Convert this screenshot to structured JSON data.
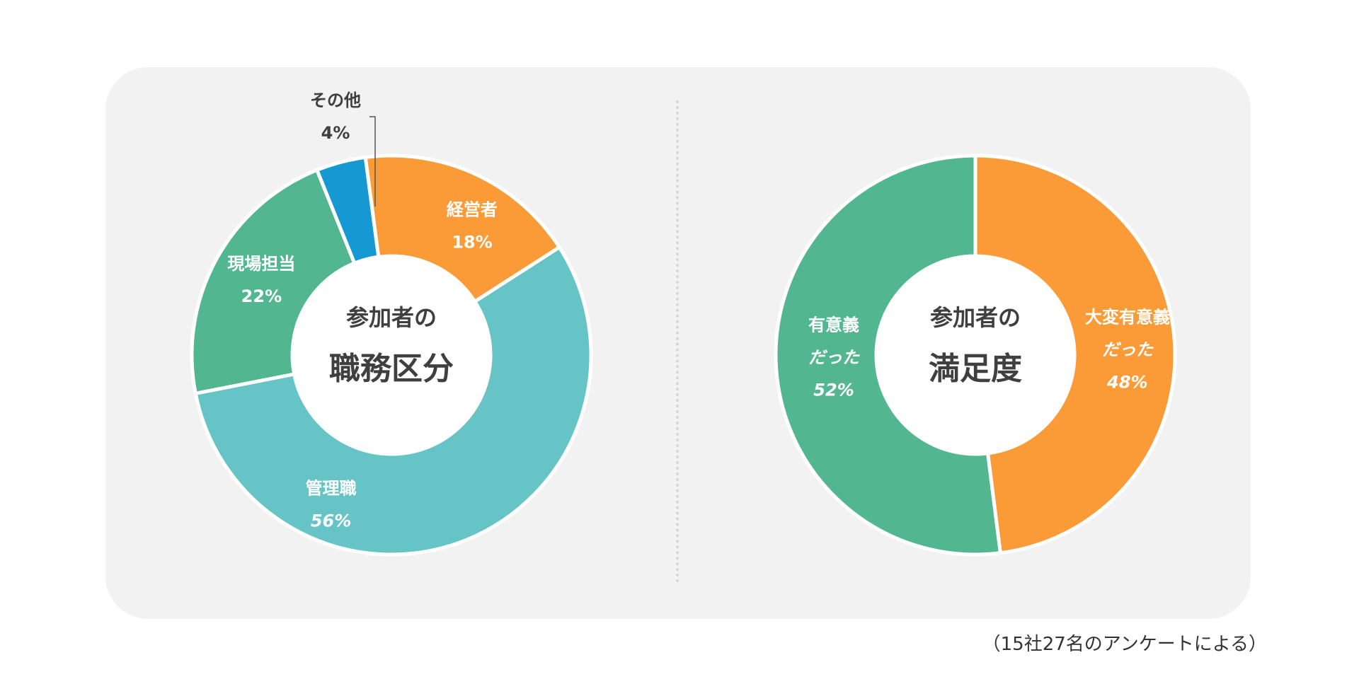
{
  "colors": {
    "orange": "#fb9b37",
    "teal": "#66c4c6",
    "green": "#52b690",
    "blue": "#1698d2",
    "center_text": "#3f3f3f",
    "panel": "#f2f2f2"
  },
  "chart_data": [
    {
      "type": "pie",
      "center_title": [
        "参加者の",
        "職務区分"
      ],
      "slices": [
        {
          "label": "経営者",
          "value": 18,
          "value_label": "18%",
          "color": "#fb9b37"
        },
        {
          "label": "管理職",
          "value": 56,
          "value_label": "56%",
          "color": "#66c4c6"
        },
        {
          "label": "現場担当",
          "value": 22,
          "value_label": "22%",
          "color": "#52b690"
        },
        {
          "label": "その他",
          "value": 4,
          "value_label": "4%",
          "color": "#1698d2"
        }
      ]
    },
    {
      "type": "pie",
      "center_title": [
        "参加者の",
        "満足度"
      ],
      "slices": [
        {
          "label": "大変有意義だった",
          "label_lines": [
            "大変有意義",
            "だった"
          ],
          "value": 48,
          "value_label": "48%",
          "color": "#fb9b37"
        },
        {
          "label": "有意義だった",
          "label_lines": [
            "有意義",
            "だった"
          ],
          "value": 52,
          "value_label": "52%",
          "color": "#52b690"
        }
      ]
    }
  ],
  "footnote": "（15社27名のアンケートによる）"
}
